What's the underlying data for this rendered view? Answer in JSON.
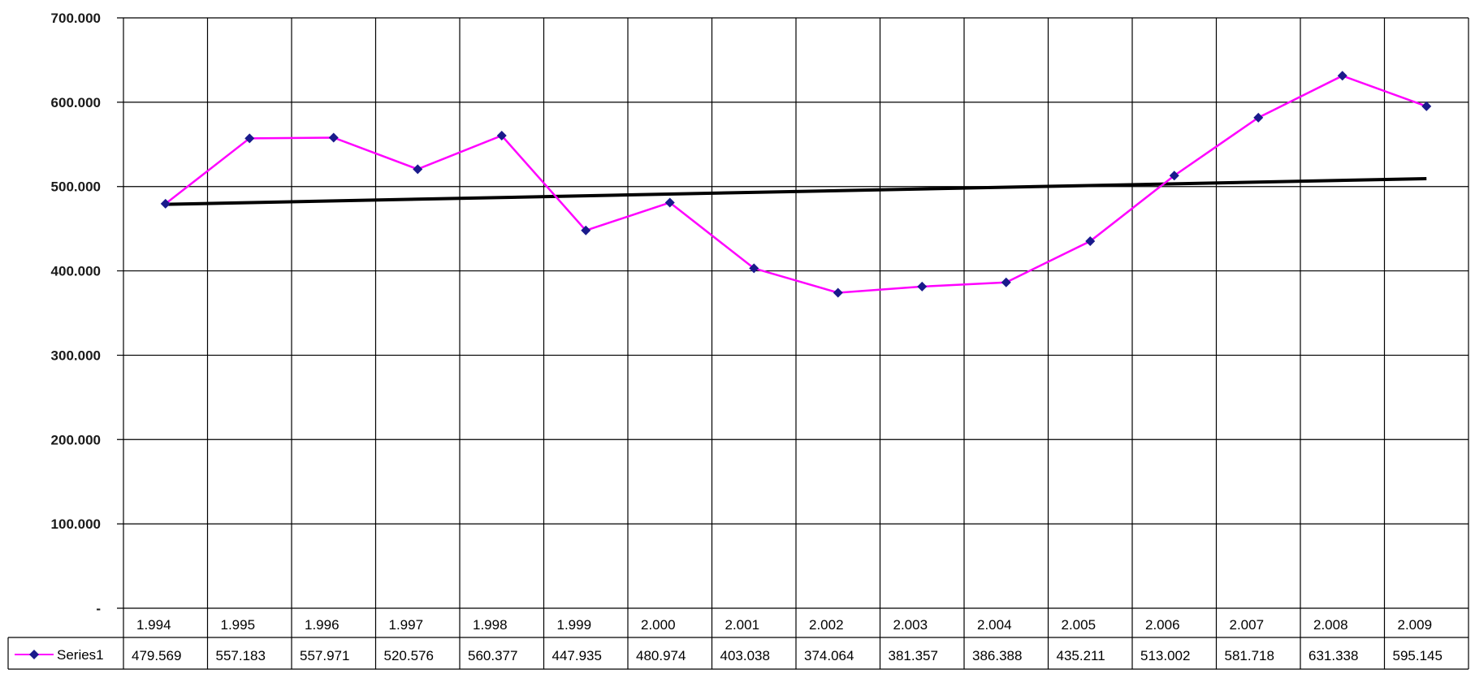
{
  "chart_data": {
    "type": "line",
    "title": "",
    "xlabel": "",
    "ylabel": "",
    "categories": [
      "1.994",
      "1.995",
      "1.996",
      "1.997",
      "1.998",
      "1.999",
      "2.000",
      "2.001",
      "2.002",
      "2.003",
      "2.004",
      "2.005",
      "2.006",
      "2.007",
      "2.008",
      "2.009"
    ],
    "series": [
      {
        "name": "Series1",
        "color": "#ff00ff",
        "marker_color": "#1a1a8c",
        "values": [
          479.569,
          557.183,
          557.971,
          520.576,
          560.377,
          447.935,
          480.974,
          403.038,
          374.064,
          381.357,
          386.388,
          435.211,
          513.002,
          581.718,
          631.338,
          595.145
        ],
        "value_labels": [
          "479.569",
          "557.183",
          "557.971",
          "520.576",
          "560.377",
          "447.935",
          "480.974",
          "403.038",
          "374.064",
          "381.357",
          "386.388",
          "435.211",
          "513.002",
          "581.718",
          "631.338",
          "595.145"
        ]
      }
    ],
    "trendline": {
      "type": "linear",
      "color": "#000000"
    },
    "ylim": [
      0,
      700
    ],
    "yticks": [
      0,
      100,
      200,
      300,
      400,
      500,
      600,
      700
    ],
    "ytick_labels": [
      "-",
      "100.000",
      "200.000",
      "300.000",
      "400.000",
      "500.000",
      "600.000",
      "700.000"
    ],
    "grid": true,
    "data_table": true
  }
}
